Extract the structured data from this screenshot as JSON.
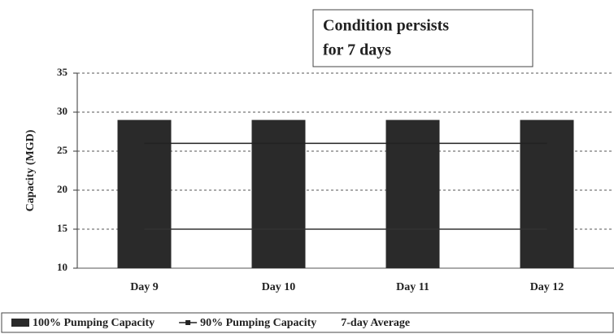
{
  "chart_data": {
    "type": "bar",
    "annotation": [
      "Condition persists",
      "for 7 days"
    ],
    "ylabel": "Capacity (MGD)",
    "categories": [
      "Day 9",
      "Day 10",
      "Day 11",
      "Day 12"
    ],
    "series": [
      {
        "name": "100% Pumping Capacity",
        "type": "bar",
        "color": "#2a2a2a",
        "values": [
          29,
          29,
          29,
          29
        ]
      },
      {
        "name": "90% Pumping Capacity",
        "type": "line",
        "color": "#222222",
        "values": [
          26,
          26,
          26,
          26
        ]
      },
      {
        "name": "7-day Average",
        "type": "line",
        "color": "#333333",
        "values": [
          15,
          15,
          15,
          15
        ]
      }
    ],
    "ylim": [
      10,
      35
    ],
    "yticks": [
      10,
      15,
      20,
      25,
      30,
      35
    ],
    "grid": true
  }
}
